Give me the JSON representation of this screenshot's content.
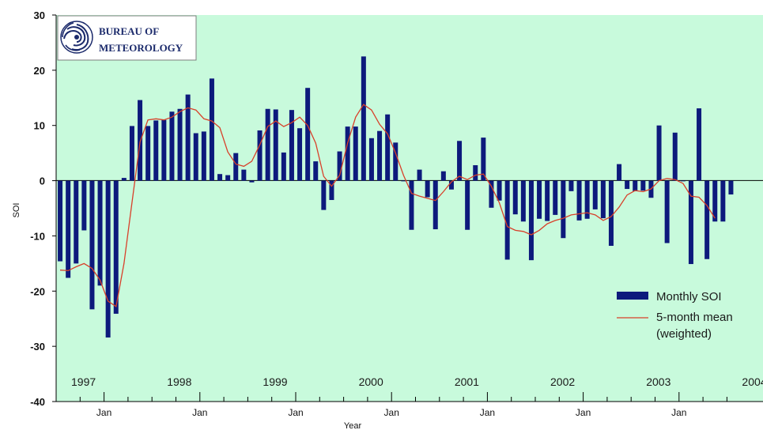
{
  "chart_data": {
    "type": "bar",
    "xlabel": "Year",
    "ylabel": "SOI",
    "ylim": [
      -40,
      30
    ],
    "yticks": [
      "30",
      "20",
      "10",
      "0",
      "-10",
      "-20",
      "-30",
      "-40"
    ],
    "month_tick_label": "Jan",
    "x_start": "1996-07",
    "year_labels": [
      "1997",
      "1998",
      "1999",
      "2000",
      "2001",
      "2002",
      "2003",
      "2004"
    ],
    "background_color": "#c8fadc",
    "bar_color": "#0d1a7c",
    "line_color": "#d8402a",
    "series": [
      {
        "name": "Monthly SOI",
        "type": "bar",
        "values": [
          -14.6,
          -17.6,
          -15.0,
          -9.0,
          -23.3,
          -19.0,
          -28.4,
          -24.1,
          0.5,
          9.9,
          14.6,
          9.9,
          10.9,
          11.0,
          12.5,
          13.0,
          15.6,
          8.6,
          8.9,
          18.5,
          1.2,
          1.0,
          5.0,
          2.0,
          -0.3,
          9.1,
          13.0,
          12.9,
          5.1,
          12.8,
          9.5,
          16.8,
          3.5,
          -5.3,
          -3.5,
          5.3,
          9.8,
          9.8,
          22.5,
          7.7,
          9.0,
          12.0,
          6.9,
          0.0,
          -8.9,
          2.0,
          -3.0,
          -8.8,
          1.7,
          -1.6,
          7.2,
          -8.9,
          2.8,
          7.8,
          -4.9,
          -3.6,
          -14.3,
          -6.1,
          -7.4,
          -14.4,
          -6.9,
          -7.3,
          -6.2,
          -10.4,
          -1.9,
          -7.2,
          -6.9,
          -5.2,
          -6.8,
          -11.8,
          3.0,
          -1.5,
          -1.9,
          -1.8,
          -3.1,
          10.0,
          -11.3,
          8.7,
          0.0,
          -15.1,
          13.1,
          -14.2,
          -7.4,
          -7.4,
          -2.5
        ]
      },
      {
        "name": "5-month mean\n(weighted)",
        "type": "line",
        "values": [
          -16.2,
          -16.3,
          -15.6,
          -15.0,
          -15.9,
          -18.0,
          -21.8,
          -22.8,
          -15.0,
          -4.0,
          7.0,
          11.0,
          11.2,
          11.0,
          11.5,
          12.5,
          13.2,
          12.8,
          11.2,
          10.8,
          9.6,
          5.2,
          3.0,
          2.6,
          3.5,
          6.5,
          9.8,
          10.8,
          9.8,
          10.5,
          11.5,
          10.0,
          6.8,
          0.8,
          -1.0,
          1.0,
          6.8,
          11.5,
          13.8,
          12.8,
          10.2,
          8.5,
          5.0,
          1.0,
          -2.3,
          -2.8,
          -3.2,
          -3.6,
          -2.0,
          -0.2,
          0.8,
          0.2,
          1.0,
          1.2,
          -1.0,
          -4.0,
          -8.3,
          -9.0,
          -9.2,
          -9.8,
          -9.0,
          -7.8,
          -7.2,
          -6.8,
          -6.2,
          -6.0,
          -5.8,
          -6.2,
          -7.2,
          -6.5,
          -4.8,
          -2.6,
          -1.8,
          -2.0,
          -1.5,
          0.0,
          0.4,
          0.2,
          -0.5,
          -2.8,
          -3.0,
          -4.5,
          -6.8,
          null,
          null
        ]
      }
    ],
    "legend": {
      "placement": "bottom-right"
    },
    "grid": false
  },
  "logo": {
    "line1": "Bureau of",
    "line2": "Meteorology"
  }
}
